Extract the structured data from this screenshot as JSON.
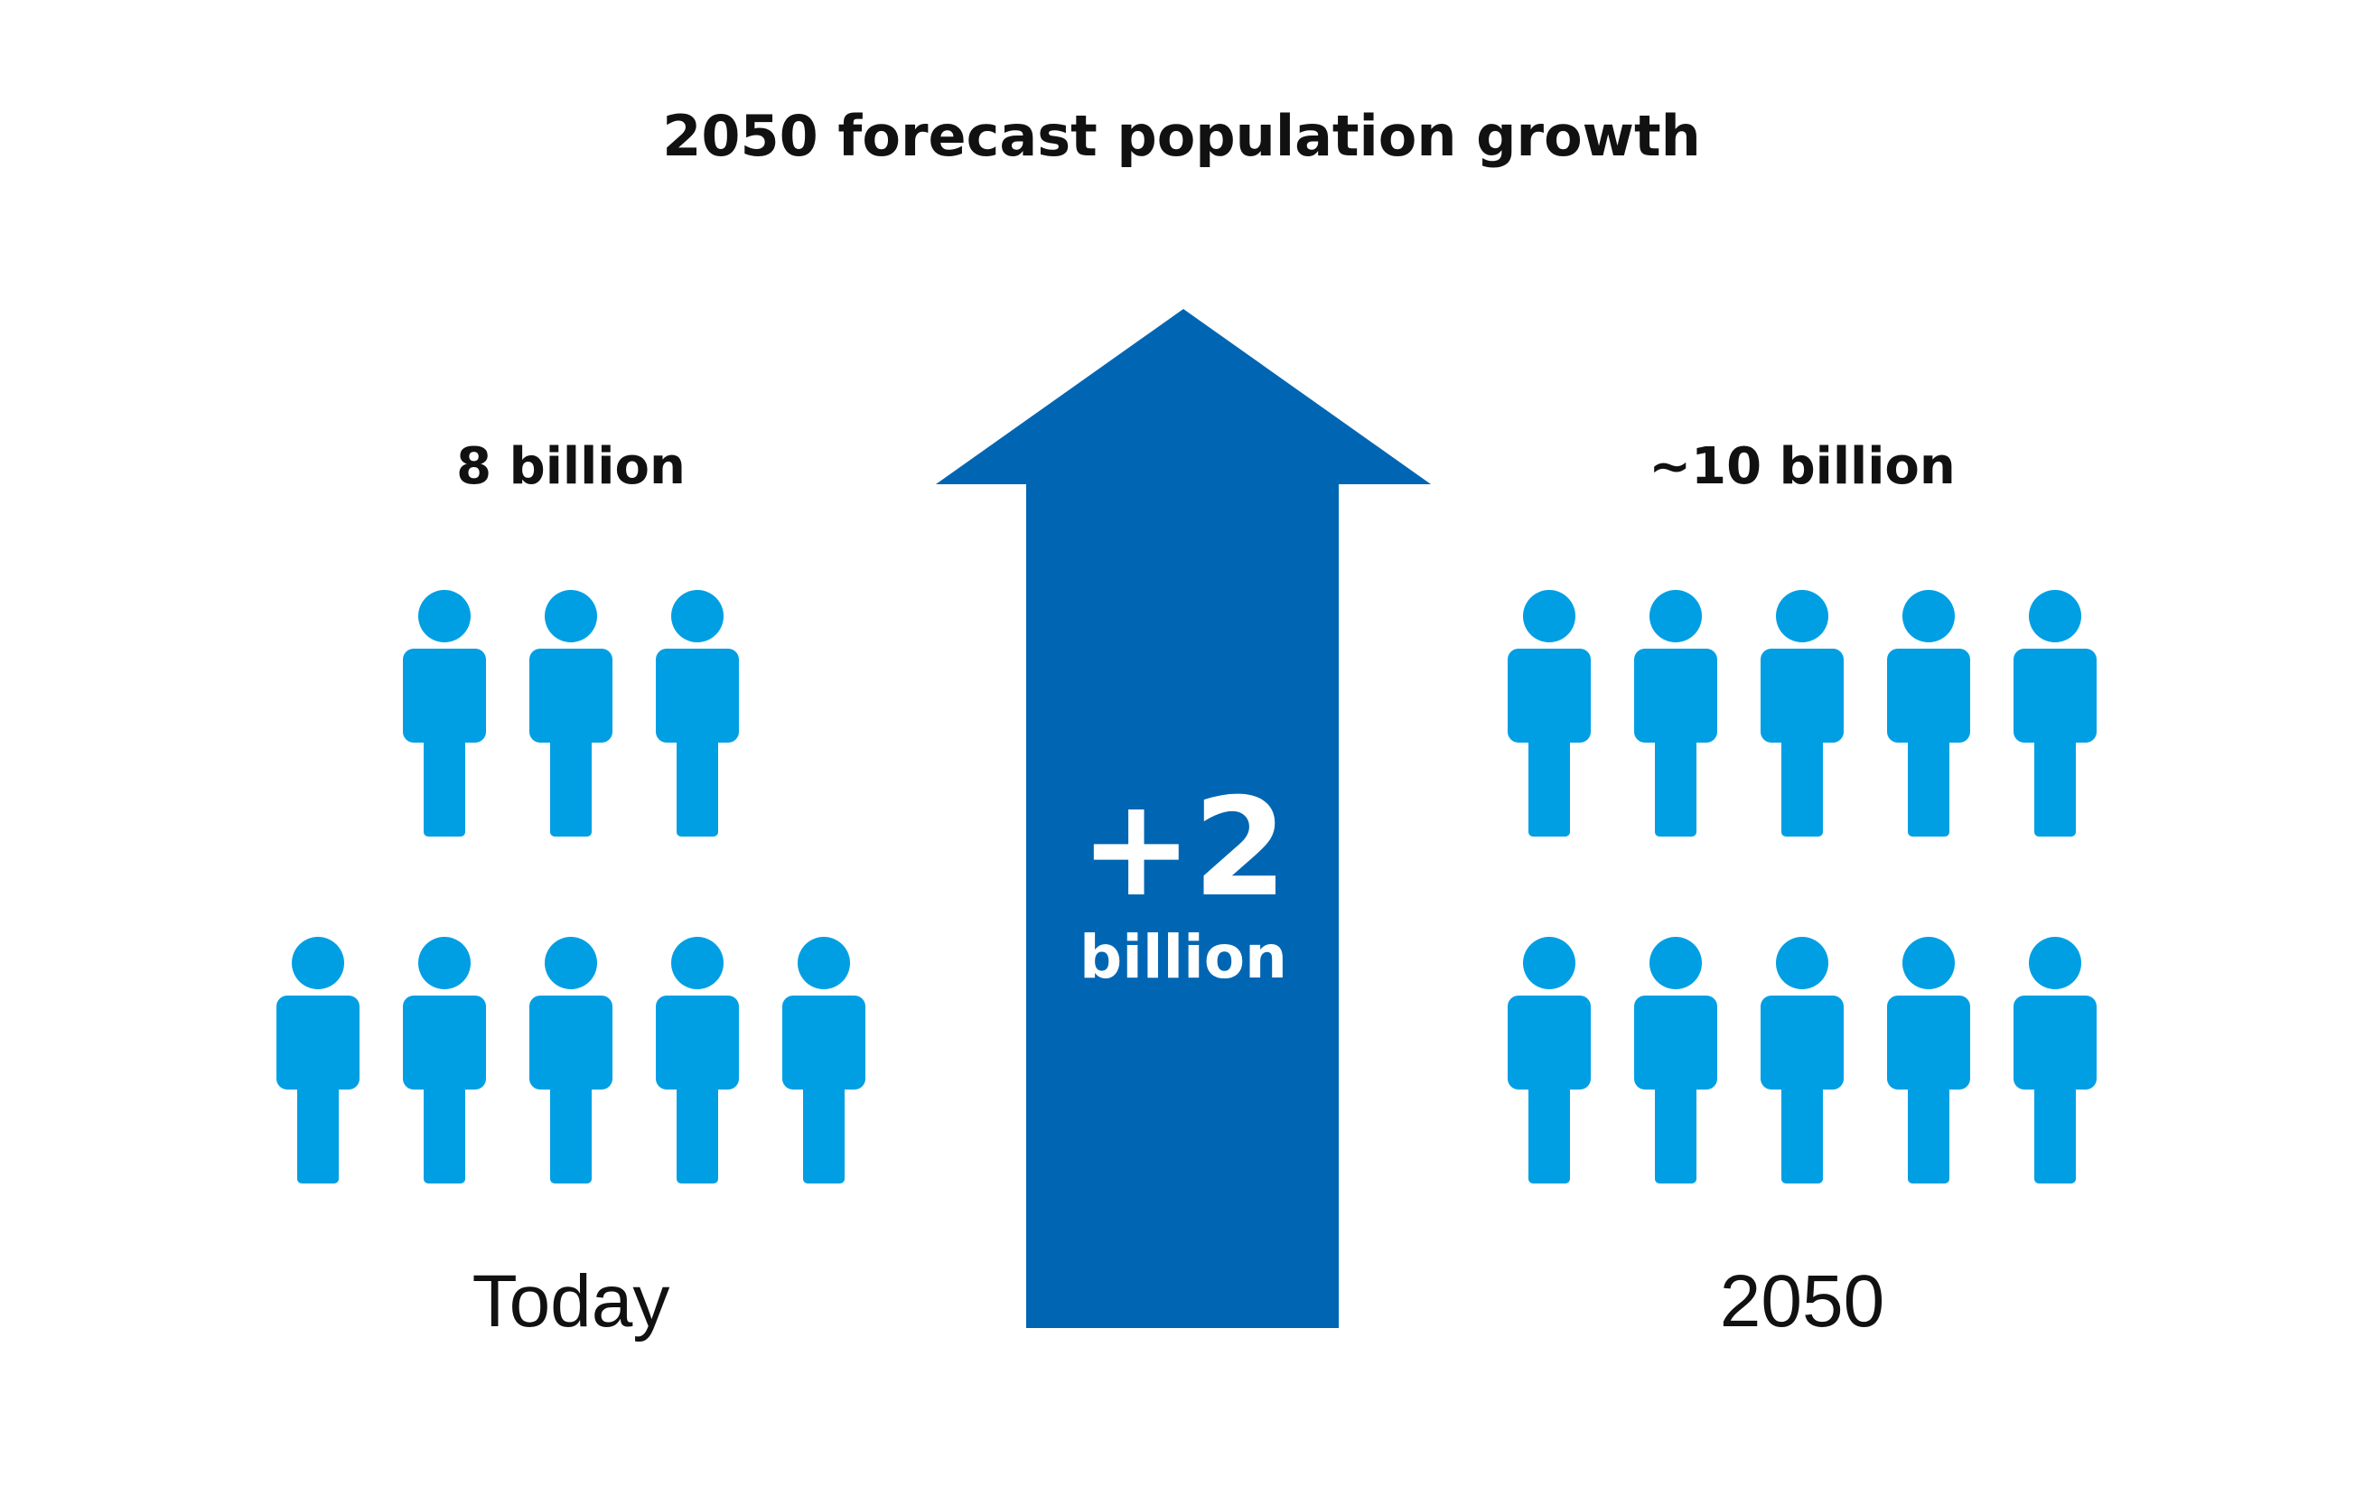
{
  "title": "2050 forecast population growth",
  "today": {
    "count_label": "8 billion",
    "period_label": "Today",
    "people_rows": [
      3,
      5
    ]
  },
  "future": {
    "count_label": "~10 billion",
    "period_label": "2050",
    "people_rows": [
      5,
      5
    ]
  },
  "arrow": {
    "change_value": "+2",
    "change_unit": "billion"
  },
  "colors": {
    "person": "#009fe3",
    "arrow": "#0066b3",
    "text": "#111111",
    "background": "#ffffff"
  },
  "icons": {
    "person": "person-icon",
    "arrow": "up-arrow-icon"
  }
}
